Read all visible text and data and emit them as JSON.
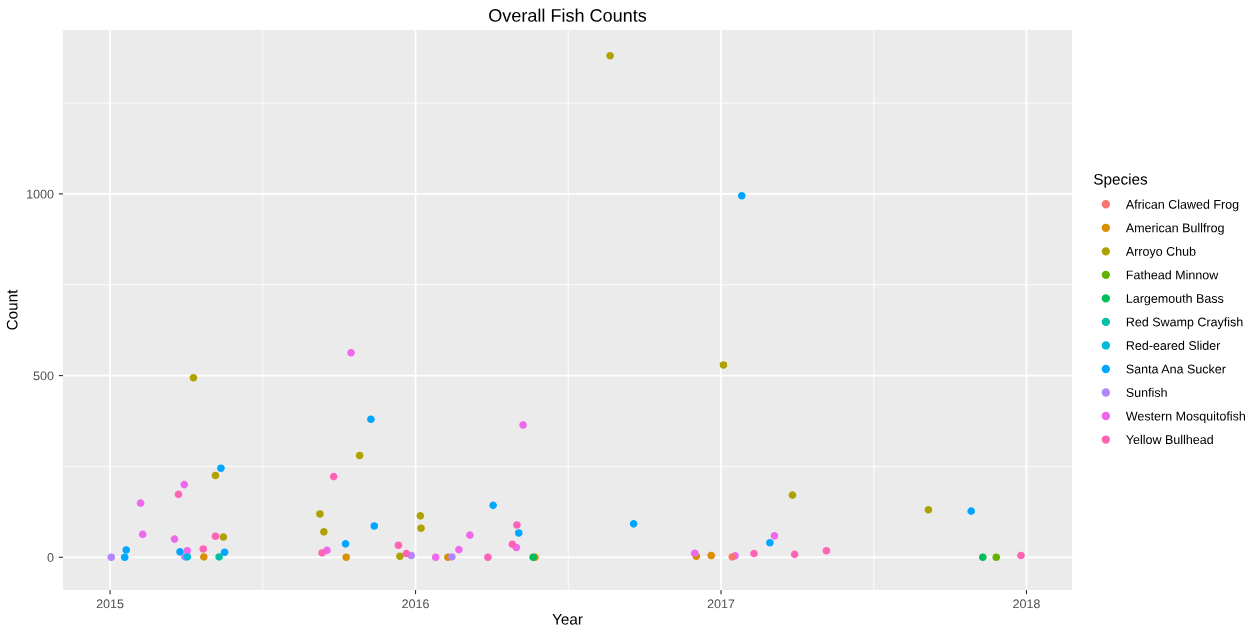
{
  "chart_data": {
    "type": "scatter",
    "title": "Overall Fish Counts",
    "xlabel": "Year",
    "ylabel": "Count",
    "legend_title": "Species",
    "legend": "right",
    "grid": true,
    "marker": "circle",
    "xlim": [
      2014.846,
      2018.149
    ],
    "ylim": [
      -90,
      1451
    ],
    "xticks": [
      2015,
      2016,
      2017,
      2018
    ],
    "yticks": [
      0,
      500,
      1000
    ],
    "series": [
      {
        "name": "African Clawed Frog",
        "color": "#F8766D",
        "x": [
          2017.037
        ],
        "values": [
          1
        ]
      },
      {
        "name": "American Bullfrog",
        "color": "#DB8E00",
        "x": [
          2015.307,
          2015.773,
          2016.106,
          2016.391,
          2016.919,
          2016.968
        ],
        "values": [
          1,
          0,
          0,
          0,
          3,
          5
        ]
      },
      {
        "name": "Arroyo Chub",
        "color": "#AEA200",
        "x": [
          2015.273,
          2015.345,
          2015.371,
          2015.687,
          2015.7,
          2015.817,
          2015.949,
          2016.016,
          2016.018,
          2016.637,
          2017.008,
          2017.234,
          2017.679
        ],
        "values": [
          494,
          225,
          56,
          119,
          70,
          280,
          3,
          114,
          80,
          1380,
          529,
          171,
          131
        ]
      },
      {
        "name": "Fathead Minnow",
        "color": "#64B200",
        "x": [
          2017.901
        ],
        "values": [
          0
        ]
      },
      {
        "name": "Largemouth Bass",
        "color": "#00BD5C",
        "x": [
          2016.385,
          2017.857
        ],
        "values": [
          0,
          0
        ]
      },
      {
        "name": "Red Swamp Crayfish",
        "color": "#00C1A7",
        "x": [
          2015.357
        ],
        "values": [
          1
        ]
      },
      {
        "name": "Red-eared Slider",
        "color": "#00BADE",
        "x": [
          2015.253
        ],
        "values": [
          1
        ]
      },
      {
        "name": "Santa Ana Sucker",
        "color": "#00A6FF",
        "x": [
          2015.048,
          2015.053,
          2015.229,
          2015.363,
          2015.375,
          2015.771,
          2015.854,
          2015.865,
          2016.254,
          2016.338,
          2016.714,
          2017.068,
          2017.16,
          2017.819
        ],
        "values": [
          0,
          20,
          15,
          245,
          14,
          37,
          380,
          86,
          143,
          67,
          92,
          995,
          40,
          127
        ]
      },
      {
        "name": "Sunfish",
        "color": "#B385FF",
        "x": [
          2015.004,
          2015.245,
          2015.986,
          2016.119
        ],
        "values": [
          0,
          1,
          5,
          1
        ]
      },
      {
        "name": "Western Mosquitofish",
        "color": "#EF67EB",
        "x": [
          2015.1,
          2015.107,
          2015.211,
          2015.243,
          2015.253,
          2015.71,
          2015.789,
          2016.066,
          2016.142,
          2016.178,
          2016.33,
          2016.352,
          2016.914,
          2017.046,
          2017.175
        ],
        "values": [
          149,
          63,
          50,
          200,
          18,
          19,
          563,
          0,
          21,
          61,
          27,
          364,
          11,
          4,
          59
        ]
      },
      {
        "name": "Yellow Bullhead",
        "color": "#FF63B6",
        "x": [
          2015.224,
          2015.305,
          2015.345,
          2015.694,
          2015.732,
          2015.944,
          2015.97,
          2016.237,
          2016.317,
          2016.332,
          2017.108,
          2017.241,
          2017.345,
          2017.982
        ],
        "values": [
          173,
          23,
          58,
          12,
          222,
          33,
          10,
          0,
          36,
          89,
          10,
          8,
          18,
          5
        ]
      }
    ]
  }
}
